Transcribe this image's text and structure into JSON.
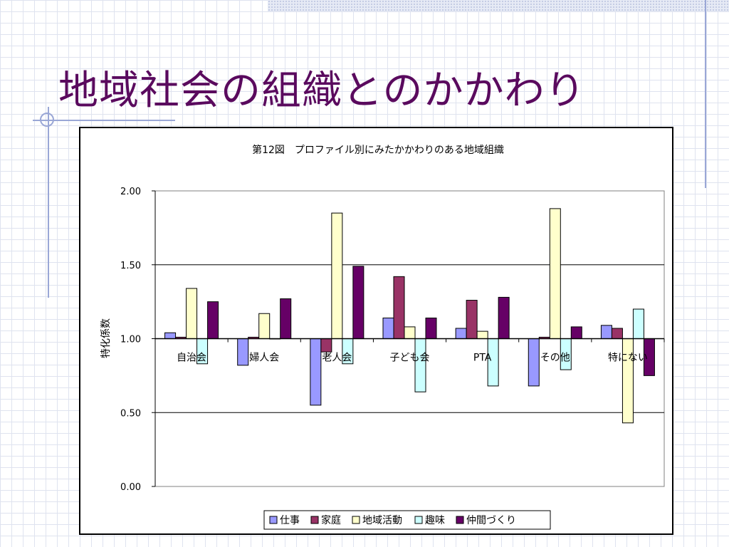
{
  "slide": {
    "title": "地域社会の組織とのかかわり"
  },
  "colors": {
    "title": "#5a0a5e",
    "grid_decoration": "#9aa7d6"
  },
  "chart_data": {
    "type": "bar",
    "title": "第12図　プロファイル別にみたかかわりのある地域組織",
    "xlabel": "",
    "ylabel": "特化係数",
    "ylim": [
      0,
      2
    ],
    "yticks": [
      "0.00",
      "0.50",
      "1.00",
      "1.50",
      "2.00"
    ],
    "baseline": 1.0,
    "grid": true,
    "legend_position": "bottom",
    "categories": [
      "自治会",
      "婦人会",
      "老人会",
      "子ども会",
      "PTA",
      "その他",
      "特にない"
    ],
    "series": [
      {
        "name": "仕事",
        "color": "#9999ff",
        "values": [
          1.04,
          0.82,
          0.55,
          1.14,
          1.07,
          0.68,
          1.09
        ]
      },
      {
        "name": "家庭",
        "color": "#993366",
        "values": [
          1.01,
          1.01,
          0.91,
          1.42,
          1.26,
          1.01,
          1.07
        ]
      },
      {
        "name": "地域活動",
        "color": "#ffffcc",
        "values": [
          1.34,
          1.17,
          1.85,
          1.08,
          1.05,
          1.88,
          0.43
        ]
      },
      {
        "name": "趣味",
        "color": "#ccffff",
        "values": [
          0.83,
          1.0,
          0.83,
          0.64,
          0.68,
          0.79,
          1.2
        ]
      },
      {
        "name": "仲間づくり",
        "color": "#660066",
        "values": [
          1.25,
          1.27,
          1.49,
          1.14,
          1.28,
          1.08,
          0.75
        ]
      }
    ]
  }
}
